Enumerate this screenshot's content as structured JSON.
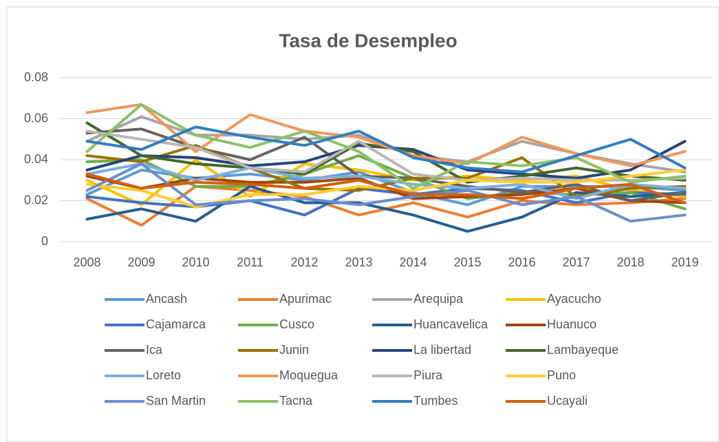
{
  "chart_data": {
    "type": "line",
    "title": "Tasa de Desempleo",
    "categories": [
      "2008",
      "2009",
      "2010",
      "2011",
      "2012",
      "2013",
      "2014",
      "2015",
      "2016",
      "2017",
      "2018",
      "2019"
    ],
    "ylim": [
      0,
      0.08
    ],
    "yticks": [
      0,
      0.02,
      0.04,
      0.06,
      0.08
    ],
    "grid": true,
    "legend": "bottom",
    "series": [
      {
        "name": "Ancash",
        "color": "#5B9BD5",
        "values": [
          0.023,
          0.035,
          0.031,
          0.033,
          0.03,
          0.034,
          0.024,
          0.018,
          0.027,
          0.027,
          0.027,
          0.025
        ]
      },
      {
        "name": "Apurimac",
        "color": "#ED7D31",
        "values": [
          0.021,
          0.008,
          0.027,
          0.025,
          0.022,
          0.013,
          0.019,
          0.012,
          0.02,
          0.018,
          0.019,
          0.021
        ]
      },
      {
        "name": "Arequipa",
        "color": "#A5A5A5",
        "values": [
          0.049,
          0.061,
          0.052,
          0.052,
          0.05,
          0.052,
          0.042,
          0.039,
          0.049,
          0.043,
          0.038,
          0.034
        ]
      },
      {
        "name": "Ayacucho",
        "color": "#FFC000",
        "values": [
          0.03,
          0.018,
          0.04,
          0.022,
          0.038,
          0.035,
          0.03,
          0.032,
          0.03,
          0.032,
          0.025,
          0.022
        ]
      },
      {
        "name": "Cajamarca",
        "color": "#4472C4",
        "values": [
          0.022,
          0.019,
          0.017,
          0.02,
          0.013,
          0.026,
          0.023,
          0.026,
          0.025,
          0.019,
          0.024,
          0.023
        ]
      },
      {
        "name": "Cusco",
        "color": "#70AD47",
        "values": [
          0.039,
          0.04,
          0.027,
          0.027,
          0.033,
          0.042,
          0.031,
          0.021,
          0.024,
          0.023,
          0.024,
          0.016
        ]
      },
      {
        "name": "Huancavelica",
        "color": "#255E91",
        "values": [
          0.011,
          0.016,
          0.01,
          0.027,
          0.019,
          0.019,
          0.013,
          0.005,
          0.012,
          0.024,
          0.022,
          0.024
        ]
      },
      {
        "name": "Huanuco",
        "color": "#9E480E",
        "values": [
          0.032,
          0.026,
          0.031,
          0.029,
          0.029,
          0.031,
          0.021,
          0.022,
          0.023,
          0.026,
          0.02,
          0.019
        ]
      },
      {
        "name": "Ica",
        "color": "#636363",
        "values": [
          0.053,
          0.055,
          0.046,
          0.04,
          0.051,
          0.032,
          0.031,
          0.027,
          0.024,
          0.028,
          0.02,
          0.024
        ]
      },
      {
        "name": "Junin",
        "color": "#997300",
        "values": [
          0.042,
          0.039,
          0.047,
          0.036,
          0.026,
          0.025,
          0.031,
          0.031,
          0.041,
          0.022,
          0.026,
          0.027
        ]
      },
      {
        "name": "La libertad",
        "color": "#264478",
        "values": [
          0.035,
          0.042,
          0.041,
          0.037,
          0.039,
          0.047,
          0.045,
          0.035,
          0.033,
          0.031,
          0.035,
          0.049
        ]
      },
      {
        "name": "Lambayeque",
        "color": "#43682B",
        "values": [
          0.058,
          0.042,
          0.038,
          0.036,
          0.033,
          0.048,
          0.044,
          0.029,
          0.032,
          0.036,
          0.032,
          0.03
        ]
      },
      {
        "name": "Loreto",
        "color": "#7CAFDD",
        "values": [
          0.033,
          0.038,
          0.03,
          0.036,
          0.031,
          0.032,
          0.028,
          0.026,
          0.028,
          0.021,
          0.028,
          0.026
        ]
      },
      {
        "name": "Moquegua",
        "color": "#F1975A",
        "values": [
          0.063,
          0.067,
          0.044,
          0.062,
          0.054,
          0.051,
          0.042,
          0.038,
          0.051,
          0.043,
          0.037,
          0.044
        ]
      },
      {
        "name": "Piura",
        "color": "#B7B7B7",
        "values": [
          0.054,
          0.05,
          0.046,
          0.036,
          0.034,
          0.049,
          0.033,
          0.03,
          0.031,
          0.03,
          0.03,
          0.031
        ]
      },
      {
        "name": "Puno",
        "color": "#FFCD33",
        "values": [
          0.028,
          0.025,
          0.017,
          0.023,
          0.023,
          0.027,
          0.025,
          0.03,
          0.029,
          0.029,
          0.032,
          0.035
        ]
      },
      {
        "name": "San Martin",
        "color": "#698ED0",
        "values": [
          0.025,
          0.038,
          0.018,
          0.02,
          0.021,
          0.018,
          0.022,
          0.025,
          0.018,
          0.022,
          0.01,
          0.013
        ]
      },
      {
        "name": "Tacna",
        "color": "#8CC168",
        "values": [
          0.044,
          0.067,
          0.052,
          0.046,
          0.054,
          0.044,
          0.026,
          0.039,
          0.037,
          0.041,
          0.029,
          0.032
        ]
      },
      {
        "name": "Tumbes",
        "color": "#327DC2",
        "values": [
          0.049,
          0.045,
          0.056,
          0.051,
          0.047,
          0.054,
          0.041,
          0.036,
          0.034,
          0.042,
          0.05,
          0.036
        ]
      },
      {
        "name": "Ucayali",
        "color": "#D26012",
        "values": [
          0.033,
          0.026,
          0.029,
          0.028,
          0.026,
          0.03,
          0.023,
          0.023,
          0.021,
          0.026,
          0.028,
          0.019
        ]
      }
    ]
  }
}
